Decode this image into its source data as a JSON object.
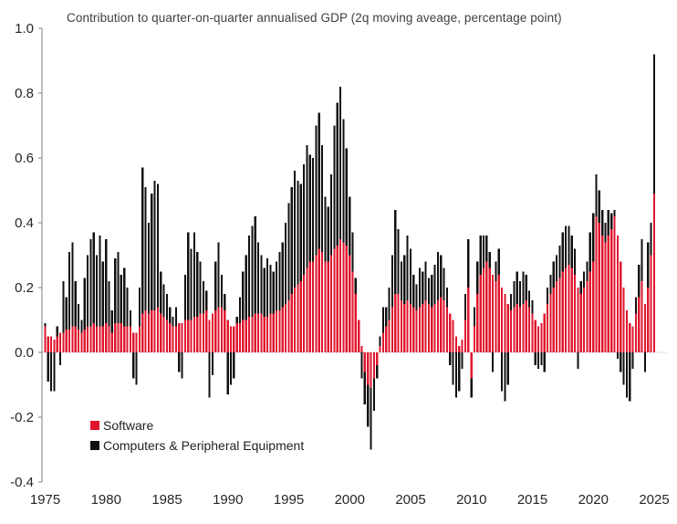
{
  "chart_data": {
    "type": "bar",
    "stacked": true,
    "title": "Contribution to quarter-on-quarter annualised GDP (2q moving aveage, percentage point)",
    "xlabel": "",
    "ylabel": "",
    "frequency": "quarterly",
    "x_start": {
      "year": 1975,
      "quarter": 1
    },
    "x_end": {
      "year": 2025,
      "quarter": 1
    },
    "ylim": [
      -0.4,
      1.0
    ],
    "y_ticks": [
      1.0,
      0.8,
      0.6,
      0.4,
      0.2,
      0.0,
      -0.2,
      -0.4
    ],
    "x_tick_years": [
      1975,
      1980,
      1985,
      1990,
      1995,
      2000,
      2005,
      2010,
      2015,
      2020,
      2025
    ],
    "grid": "off",
    "zero_line_style": "dotted",
    "legend_position": "inside-bottom-left",
    "series": [
      {
        "name": "Software",
        "color": "#e0162d",
        "values": [
          0.08,
          0.05,
          0.05,
          0.04,
          0.05,
          0.06,
          0.06,
          0.07,
          0.07,
          0.08,
          0.08,
          0.07,
          0.06,
          0.07,
          0.08,
          0.08,
          0.09,
          0.08,
          0.08,
          0.08,
          0.09,
          0.08,
          0.06,
          0.09,
          0.09,
          0.09,
          0.08,
          0.08,
          0.08,
          0.06,
          0.06,
          0.08,
          0.12,
          0.13,
          0.12,
          0.13,
          0.13,
          0.14,
          0.12,
          0.11,
          0.1,
          0.09,
          0.08,
          0.08,
          0.09,
          0.09,
          0.1,
          0.1,
          0.1,
          0.11,
          0.11,
          0.12,
          0.12,
          0.13,
          0.1,
          0.12,
          0.13,
          0.14,
          0.14,
          0.13,
          0.1,
          0.08,
          0.08,
          0.09,
          0.09,
          0.1,
          0.1,
          0.11,
          0.11,
          0.12,
          0.12,
          0.12,
          0.11,
          0.11,
          0.12,
          0.12,
          0.13,
          0.13,
          0.14,
          0.15,
          0.16,
          0.18,
          0.2,
          0.21,
          0.22,
          0.24,
          0.26,
          0.28,
          0.28,
          0.3,
          0.32,
          0.31,
          0.28,
          0.28,
          0.3,
          0.32,
          0.33,
          0.35,
          0.34,
          0.33,
          0.3,
          0.25,
          0.18,
          0.1,
          0.02,
          -0.06,
          -0.1,
          -0.11,
          -0.08,
          -0.04,
          0.02,
          0.06,
          0.08,
          0.1,
          0.14,
          0.18,
          0.18,
          0.16,
          0.15,
          0.16,
          0.15,
          0.14,
          0.13,
          0.14,
          0.15,
          0.16,
          0.15,
          0.14,
          0.15,
          0.16,
          0.17,
          0.16,
          0.14,
          0.12,
          0.1,
          0.05,
          0.02,
          0.04,
          0.1,
          0.2,
          -0.08,
          0.08,
          0.18,
          0.24,
          0.26,
          0.28,
          0.26,
          0.24,
          0.22,
          0.24,
          0.2,
          0.18,
          0.15,
          0.13,
          0.14,
          0.15,
          0.14,
          0.15,
          0.16,
          0.14,
          0.12,
          0.1,
          0.08,
          0.09,
          0.12,
          0.15,
          0.18,
          0.2,
          0.22,
          0.23,
          0.25,
          0.26,
          0.27,
          0.26,
          0.24,
          0.2,
          0.18,
          0.2,
          0.22,
          0.25,
          0.28,
          0.42,
          0.4,
          0.36,
          0.34,
          0.36,
          0.38,
          0.42,
          0.36,
          0.28,
          0.2,
          0.13,
          0.09,
          0.08,
          0.12,
          0.17,
          0.22,
          0.15,
          0.2,
          0.3,
          0.49
        ]
      },
      {
        "name": "Computers & Peripheral Equipment",
        "color": "#101010",
        "values": [
          0.01,
          -0.09,
          -0.12,
          -0.12,
          0.03,
          -0.04,
          0.16,
          0.1,
          0.24,
          0.26,
          0.14,
          0.08,
          0.04,
          0.16,
          0.22,
          0.27,
          0.28,
          0.22,
          0.28,
          0.2,
          0.26,
          0.14,
          0.07,
          0.2,
          0.22,
          0.15,
          0.18,
          0.12,
          0.05,
          -0.08,
          -0.1,
          0.12,
          0.45,
          0.38,
          0.28,
          0.36,
          0.4,
          0.38,
          0.13,
          0.1,
          0.08,
          0.05,
          0.03,
          0.06,
          -0.06,
          -0.08,
          0.14,
          0.27,
          0.22,
          0.26,
          0.2,
          0.16,
          0.1,
          0.06,
          -0.14,
          -0.07,
          0.15,
          0.2,
          0.1,
          0.05,
          -0.13,
          -0.1,
          -0.08,
          0.02,
          0.08,
          0.15,
          0.2,
          0.25,
          0.28,
          0.3,
          0.22,
          0.18,
          0.15,
          0.18,
          0.15,
          0.13,
          0.15,
          0.18,
          0.2,
          0.25,
          0.3,
          0.33,
          0.36,
          0.32,
          0.3,
          0.34,
          0.38,
          0.33,
          0.32,
          0.4,
          0.42,
          0.33,
          0.2,
          0.17,
          0.25,
          0.38,
          0.44,
          0.47,
          0.38,
          0.3,
          0.18,
          0.12,
          0.05,
          0.0,
          -0.08,
          -0.1,
          -0.13,
          -0.19,
          -0.1,
          -0.04,
          0.03,
          0.08,
          0.06,
          0.1,
          0.16,
          0.26,
          0.2,
          0.12,
          0.15,
          0.2,
          0.17,
          0.1,
          0.08,
          0.12,
          0.1,
          0.12,
          0.08,
          0.1,
          0.12,
          0.15,
          0.13,
          0.1,
          0.06,
          -0.04,
          -0.1,
          -0.14,
          -0.12,
          -0.05,
          0.08,
          0.15,
          -0.06,
          0.06,
          0.1,
          0.12,
          0.1,
          0.08,
          0.05,
          -0.06,
          0.06,
          0.08,
          -0.12,
          -0.15,
          -0.1,
          0.05,
          0.08,
          0.1,
          0.08,
          0.1,
          0.08,
          0.05,
          0.04,
          -0.04,
          -0.05,
          -0.04,
          -0.06,
          0.05,
          0.06,
          0.08,
          0.08,
          0.1,
          0.12,
          0.13,
          0.12,
          0.1,
          0.08,
          -0.05,
          0.04,
          0.05,
          0.06,
          0.12,
          0.15,
          0.13,
          0.1,
          0.08,
          0.06,
          0.08,
          0.05,
          0.02,
          -0.02,
          -0.06,
          -0.1,
          -0.14,
          -0.15,
          -0.05,
          0.05,
          0.1,
          0.13,
          -0.06,
          0.14,
          0.1,
          0.43
        ]
      }
    ]
  },
  "colors": {
    "axis_line": "#7f7f7f",
    "tick_label": "#262626",
    "title_text": "#3f3f3f",
    "zero_line": "#b5b5b5",
    "background": "#ffffff"
  }
}
